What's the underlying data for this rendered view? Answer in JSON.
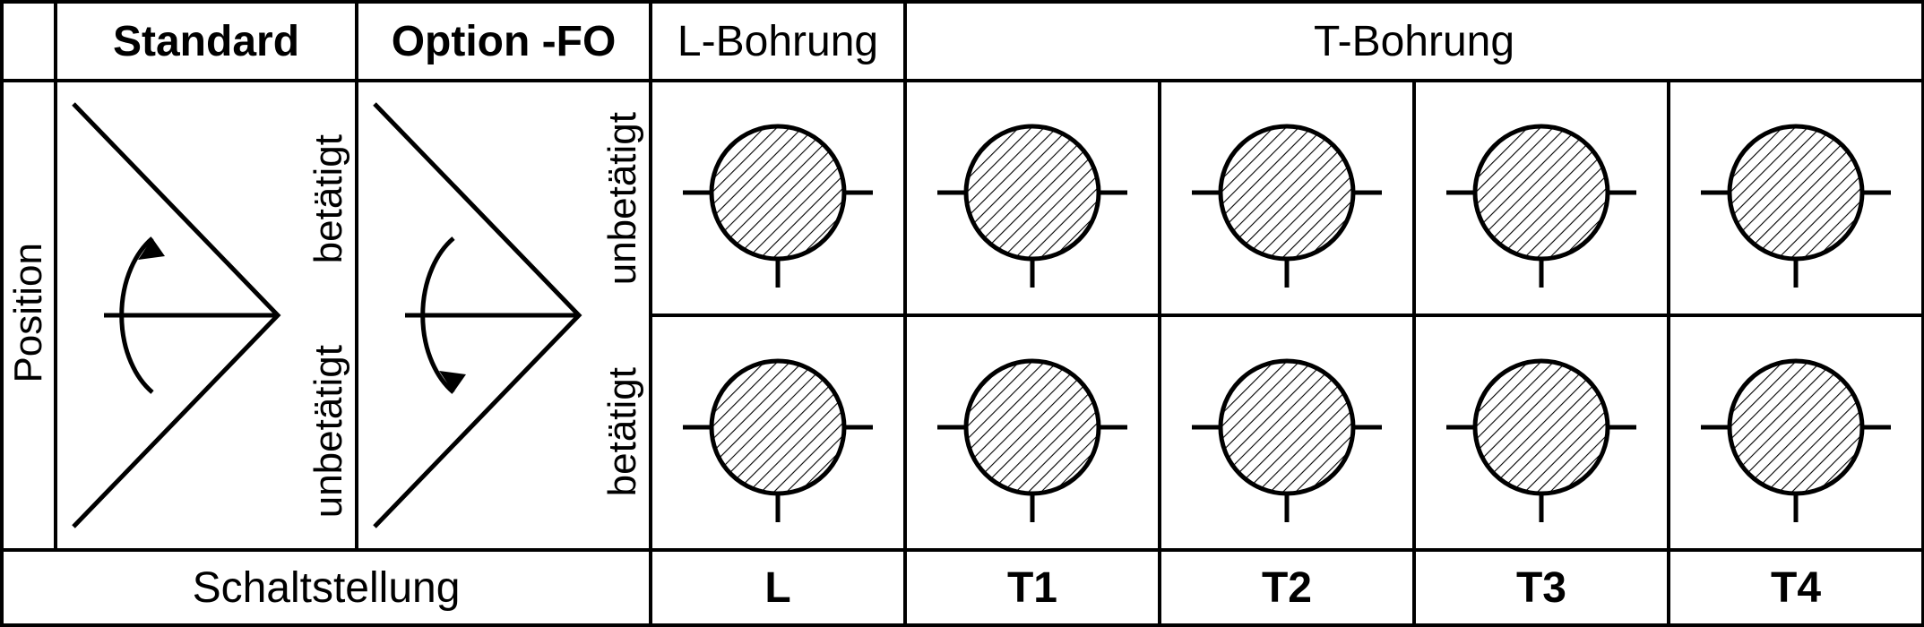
{
  "colors": {
    "stroke": "#000000",
    "bg": "#ffffff",
    "hatch": "#000000"
  },
  "stroke_width_outer": 4,
  "stroke_width_symbol": 5,
  "hatch_spacing": 10,
  "hatch_angle_deg": 45,
  "headers": {
    "standard": "Standard",
    "option_fo": "Option -FO",
    "l_bohrung": "L-Bohrung",
    "t_bohrung": "T-Bohrung"
  },
  "side_labels": {
    "position": "Position",
    "betaetigt": "betätigt",
    "unbetaetigt": "unbetätigt"
  },
  "footer": {
    "schaltstellung": "Schaltstellung",
    "L": "L",
    "T1": "T1",
    "T2": "T2",
    "T3": "T3",
    "T4": "T4"
  },
  "valve": {
    "radius": 74,
    "port_len": 32,
    "channel_half": 22
  },
  "valves": {
    "L_top": {
      "shape": "L",
      "rotation": 0,
      "ports": [
        "left",
        "right",
        "bottom"
      ]
    },
    "L_bot": {
      "shape": "L",
      "rotation": 270,
      "ports": [
        "left",
        "right",
        "bottom"
      ]
    },
    "T1_top": {
      "shape": "T",
      "rotation": 0,
      "ports": [
        "left",
        "right",
        "bottom"
      ]
    },
    "T1_bot": {
      "shape": "T",
      "rotation": 90,
      "ports": [
        "left",
        "right",
        "bottom"
      ]
    },
    "T2_top": {
      "shape": "T",
      "rotation": 90,
      "ports": [
        "left",
        "right",
        "bottom"
      ]
    },
    "T2_bot": {
      "shape": "T",
      "rotation": 180,
      "ports": [
        "left",
        "right",
        "bottom"
      ]
    },
    "T3_top": {
      "shape": "T",
      "rotation": 180,
      "ports": [
        "left",
        "right",
        "bottom"
      ]
    },
    "T3_bot": {
      "shape": "T",
      "rotation": 270,
      "ports": [
        "left",
        "right",
        "bottom"
      ]
    },
    "T4_top": {
      "shape": "T",
      "rotation": 270,
      "ports": [
        "left",
        "right",
        "bottom"
      ]
    },
    "T4_bot": {
      "shape": "T",
      "rotation": 0,
      "ports": [
        "left",
        "right",
        "bottom"
      ]
    }
  },
  "actuators": {
    "standard": {
      "arrow": "up",
      "row1_label_key": "betaetigt",
      "row2_label_key": "unbetaetigt"
    },
    "option_fo": {
      "arrow": "down",
      "row1_label_key": "unbetaetigt",
      "row2_label_key": "betaetigt"
    }
  }
}
